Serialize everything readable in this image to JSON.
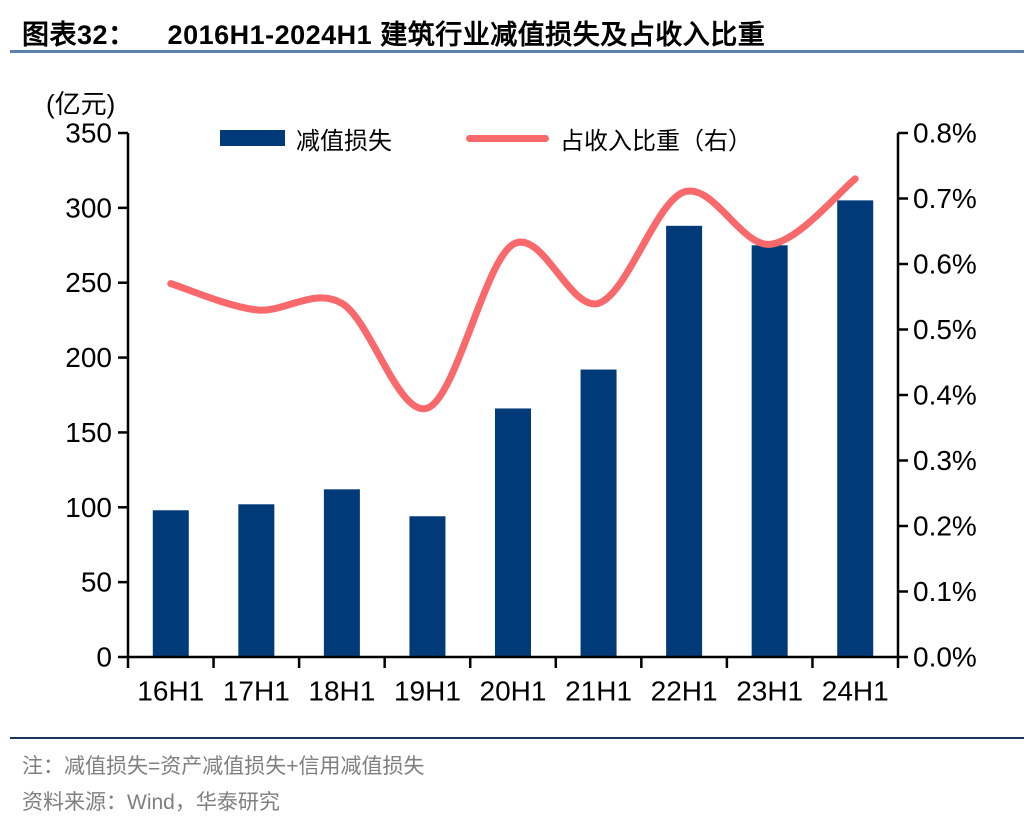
{
  "header": {
    "figure_label": "图表32：",
    "title": "2016H1-2024H1 建筑行业减值损失及占收入比重"
  },
  "colors": {
    "bar": "#003a78",
    "line": "#f9696c",
    "title_underline": "#5b80b1",
    "footer_separator": "#17375d",
    "footer_text": "#7f7f7f",
    "axis": "#000000"
  },
  "chart_data": {
    "type": "bar+line",
    "title": "2016H1-2024H1 建筑行业减值损失及占收入比重",
    "unit_label": "(亿元)",
    "categories": [
      "16H1",
      "17H1",
      "18H1",
      "19H1",
      "20H1",
      "21H1",
      "22H1",
      "23H1",
      "24H1"
    ],
    "series": [
      {
        "name": "减值损失",
        "type": "bar",
        "axis": "left",
        "color": "#003a78",
        "values": [
          98,
          102,
          112,
          94,
          166,
          192,
          288,
          275,
          305
        ]
      },
      {
        "name": "占收入比重（右）",
        "type": "line",
        "axis": "right",
        "color": "#f9696c",
        "values_percent": [
          0.57,
          0.53,
          0.54,
          0.38,
          0.63,
          0.54,
          0.71,
          0.63,
          0.73
        ]
      }
    ],
    "left_axis": {
      "min": 0,
      "max": 350,
      "step": 50,
      "tick_labels": [
        "0",
        "50",
        "100",
        "150",
        "200",
        "250",
        "300",
        "350"
      ]
    },
    "right_axis": {
      "min": 0,
      "max": 0.8,
      "step": 0.1,
      "tick_labels": [
        "0.0%",
        "0.1%",
        "0.2%",
        "0.3%",
        "0.4%",
        "0.5%",
        "0.6%",
        "0.7%",
        "0.8%"
      ]
    },
    "grid": false,
    "legend_position": "top-inside",
    "line_smooth": true
  },
  "footer": {
    "note": "注：减值损失=资产减值损失+信用减值损失",
    "source": "资料来源：Wind，华泰研究"
  }
}
